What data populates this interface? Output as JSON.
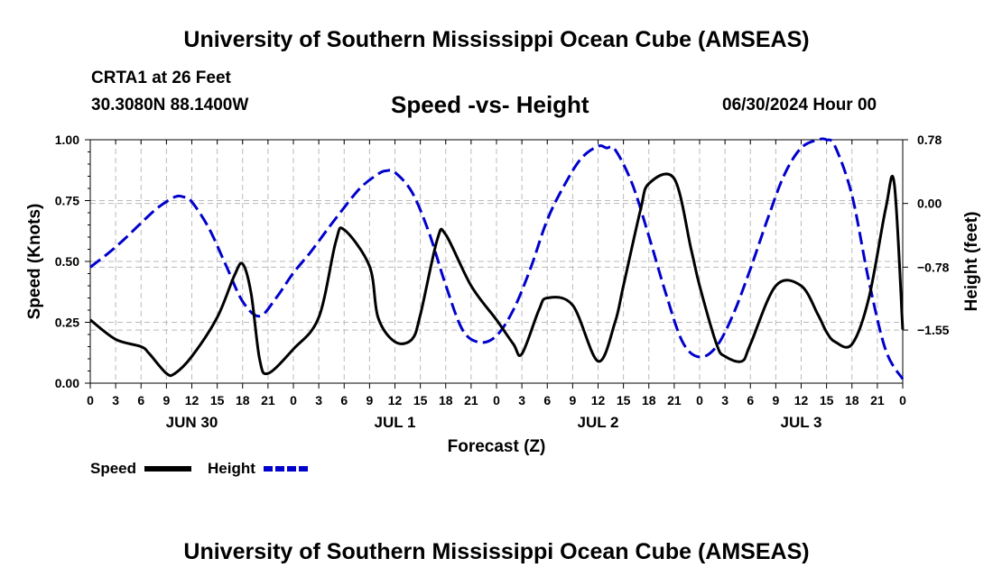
{
  "header": {
    "title": "University of Southern Mississippi Ocean Cube (AMSEAS)",
    "station": "CRTA1 at 26 Feet",
    "coords": "30.3080N  88.1400W",
    "subtitle": "Speed -vs- Height",
    "datetime": "06/30/2024 Hour 00"
  },
  "footer": {
    "title": "University of Southern Mississippi Ocean Cube (AMSEAS)"
  },
  "colors": {
    "speed": "#000000",
    "height": "#0000cc",
    "grid": "#bbbbbb"
  },
  "chart_data": {
    "type": "line",
    "title": "Speed -vs- Height",
    "xlabel": "Forecast (Z)",
    "ylabel": "Speed (Knots)",
    "ylabel_right": "Height (feet)",
    "x_range": [
      0,
      96
    ],
    "ylim": [
      0,
      1
    ],
    "ylim_right": [
      -2.2,
      0.78
    ],
    "x_tick_labels": [
      "0",
      "3",
      "6",
      "9",
      "12",
      "15",
      "18",
      "21",
      "0",
      "3",
      "6",
      "9",
      "12",
      "15",
      "18",
      "21",
      "0",
      "3",
      "6",
      "9",
      "12",
      "15",
      "18",
      "21",
      "0",
      "3",
      "6",
      "9",
      "12",
      "15",
      "18",
      "21",
      "0"
    ],
    "y_ticks": [
      0,
      0.25,
      0.5,
      0.75,
      1
    ],
    "y_tick_labels": [
      "0.00",
      "0.25",
      "0.50",
      "0.75",
      "1.00"
    ],
    "y_ticks_right": [
      0.78,
      0,
      -0.78,
      -1.55
    ],
    "y_tick_labels_right": [
      "0.78",
      "0.00",
      "−0.78",
      "−1.55"
    ],
    "date_labels": [
      {
        "label": "JUN 30",
        "hour": 12
      },
      {
        "label": "JUL 1",
        "hour": 36
      },
      {
        "label": "JUL 2",
        "hour": 60
      },
      {
        "label": "JUL 3",
        "hour": 84
      }
    ],
    "legend": [
      {
        "name": "Speed",
        "style": "solid"
      },
      {
        "name": "Height",
        "style": "dashed"
      }
    ],
    "series": [
      {
        "name": "Speed",
        "axis": "left",
        "x": [
          0,
          3,
          6,
          7,
          9,
          10,
          12,
          15,
          17,
          18,
          19,
          20,
          21,
          24,
          27,
          29,
          30,
          33,
          34,
          36,
          38,
          39,
          41,
          42,
          45,
          48,
          50,
          51,
          53,
          54,
          57,
          60,
          62,
          63,
          65,
          66,
          69,
          71,
          72,
          74,
          75,
          77,
          78,
          81,
          84,
          86,
          87,
          88,
          90,
          92,
          94,
          95,
          96
        ],
        "y": [
          0.26,
          0.18,
          0.15,
          0.12,
          0.04,
          0.04,
          0.11,
          0.27,
          0.44,
          0.49,
          0.37,
          0.1,
          0.04,
          0.14,
          0.27,
          0.58,
          0.63,
          0.48,
          0.27,
          0.17,
          0.18,
          0.28,
          0.59,
          0.61,
          0.4,
          0.26,
          0.16,
          0.12,
          0.3,
          0.35,
          0.32,
          0.09,
          0.25,
          0.4,
          0.71,
          0.82,
          0.84,
          0.55,
          0.4,
          0.16,
          0.11,
          0.09,
          0.16,
          0.4,
          0.4,
          0.28,
          0.21,
          0.17,
          0.16,
          0.35,
          0.72,
          0.82,
          0.22
        ]
      },
      {
        "name": "Height",
        "axis": "right",
        "x": [
          0,
          2,
          4,
          6,
          8,
          10,
          11,
          12,
          14,
          16,
          18,
          20,
          22,
          24,
          26,
          28,
          30,
          32,
          34,
          35,
          36,
          38,
          40,
          42,
          44,
          46,
          48,
          50,
          52,
          54,
          56,
          58,
          60,
          61,
          62,
          64,
          66,
          68,
          70,
          72,
          74,
          76,
          78,
          80,
          82,
          84,
          86,
          87,
          88,
          90,
          92,
          94,
          96
        ],
        "y": [
          -0.78,
          -0.62,
          -0.44,
          -0.24,
          -0.05,
          0.08,
          0.08,
          0.02,
          -0.3,
          -0.75,
          -1.2,
          -1.38,
          -1.15,
          -0.85,
          -0.6,
          -0.32,
          -0.05,
          0.2,
          0.36,
          0.4,
          0.38,
          0.14,
          -0.35,
          -1.0,
          -1.55,
          -1.7,
          -1.62,
          -1.3,
          -0.8,
          -0.2,
          0.22,
          0.55,
          0.7,
          0.68,
          0.66,
          0.25,
          -0.4,
          -1.1,
          -1.7,
          -1.88,
          -1.75,
          -1.35,
          -0.8,
          -0.2,
          0.35,
          0.68,
          0.78,
          0.78,
          0.7,
          0.1,
          -0.95,
          -1.8,
          -2.15
        ]
      }
    ]
  }
}
